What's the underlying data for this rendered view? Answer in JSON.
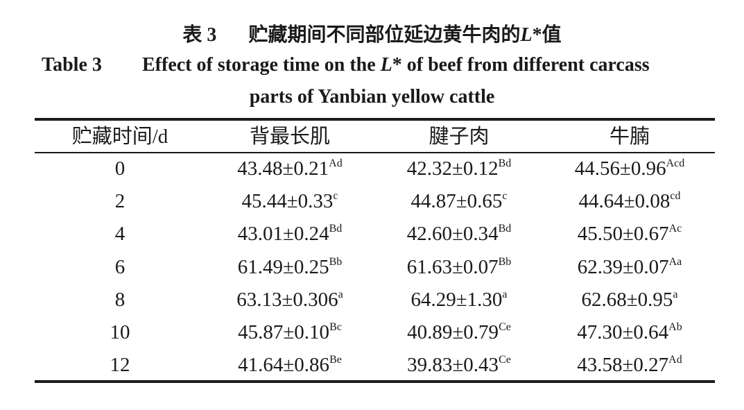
{
  "header": {
    "cn": {
      "label": "表 3",
      "text": "贮藏期间不同部位延边黄牛肉的",
      "italic": "L",
      "tail": "*值"
    },
    "en": {
      "label": "Table 3",
      "text": "Effect of storage time on the ",
      "italic": "L",
      "tail": "* of beef from different carcass",
      "line2": "parts of Yanbian yellow cattle"
    }
  },
  "table": {
    "columns": [
      "贮藏时间/d",
      "背最长肌",
      "腱子肉",
      "牛腩"
    ],
    "rows": [
      [
        "0",
        {
          "value": "43.48±0.21",
          "sup": "Ad"
        },
        {
          "value": "42.32±0.12",
          "sup": "Bd"
        },
        {
          "value": "44.56±0.96",
          "sup": "Acd"
        }
      ],
      [
        "2",
        {
          "value": "45.44±0.33",
          "sup": "c"
        },
        {
          "value": "44.87±0.65",
          "sup": "c"
        },
        {
          "value": "44.64±0.08",
          "sup": "cd"
        }
      ],
      [
        "4",
        {
          "value": "43.01±0.24",
          "sup": "Bd"
        },
        {
          "value": "42.60±0.34",
          "sup": "Bd"
        },
        {
          "value": "45.50±0.67",
          "sup": "Ac"
        }
      ],
      [
        "6",
        {
          "value": "61.49±0.25",
          "sup": "Bb"
        },
        {
          "value": "61.63±0.07",
          "sup": "Bb"
        },
        {
          "value": "62.39±0.07",
          "sup": "Aa"
        }
      ],
      [
        "8",
        {
          "value": "63.13±0.306",
          "sup": "a"
        },
        {
          "value": "64.29±1.30",
          "sup": "a"
        },
        {
          "value": "62.68±0.95",
          "sup": "a"
        }
      ],
      [
        "10",
        {
          "value": "45.87±0.10",
          "sup": "Bc"
        },
        {
          "value": "40.89±0.79",
          "sup": "Ce"
        },
        {
          "value": "47.30±0.64",
          "sup": "Ab"
        }
      ],
      [
        "12",
        {
          "value": "41.64±0.86",
          "sup": "Be"
        },
        {
          "value": "39.83±0.43",
          "sup": "Ce"
        },
        {
          "value": "43.58±0.27",
          "sup": "Ad"
        }
      ]
    ]
  }
}
